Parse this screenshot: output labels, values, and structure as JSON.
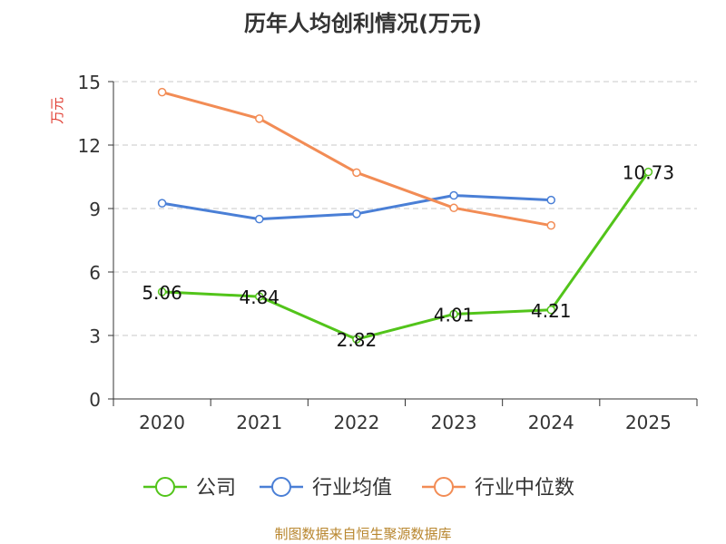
{
  "chart_data": {
    "type": "line",
    "title": "历年人均创利情况(万元)",
    "ylabel": "万元",
    "xlabel": "",
    "categories": [
      "2020",
      "2021",
      "2022",
      "2023",
      "2024",
      "2025"
    ],
    "ylim": [
      0,
      15
    ],
    "yticks": [
      0,
      3,
      6,
      9,
      12,
      15
    ],
    "grid": true,
    "legend_position": "bottom",
    "series": [
      {
        "name": "公司",
        "color": "#52c41a",
        "values": [
          5.06,
          4.84,
          2.82,
          4.01,
          4.21,
          10.73
        ],
        "labels": [
          "5.06",
          "4.84",
          "2.82",
          "4.01",
          "4.21",
          "10.73"
        ],
        "show_labels": true
      },
      {
        "name": "行业均值",
        "color": "#4a7fd6",
        "values": [
          9.25,
          8.5,
          8.75,
          9.62,
          9.4,
          null
        ],
        "show_labels": false
      },
      {
        "name": "行业中位数",
        "color": "#f28c55",
        "values": [
          14.5,
          13.25,
          10.7,
          9.03,
          8.2,
          null
        ],
        "show_labels": false
      }
    ]
  },
  "source": "制图数据来自恒生聚源数据库"
}
